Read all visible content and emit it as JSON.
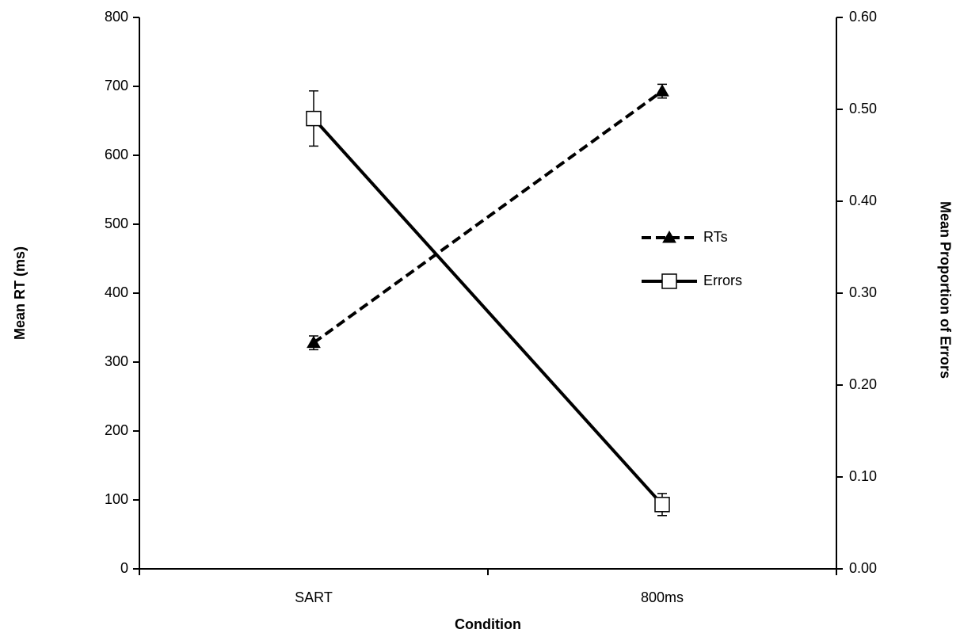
{
  "chart_data": {
    "type": "line",
    "categories": [
      "SART",
      "800ms"
    ],
    "x_label": "Condition",
    "y_label": "Mean RT (ms)",
    "y2_label": "Mean Proportion of Errors",
    "ylim": [
      0,
      800
    ],
    "yticks": [
      0,
      100,
      200,
      300,
      400,
      500,
      600,
      700,
      800
    ],
    "y2lim": [
      0,
      0.6
    ],
    "y2ticks": [
      {
        "value": 0,
        "label": "0.00"
      },
      {
        "value": 0.1,
        "label": "0.10"
      },
      {
        "value": 0.2,
        "label": "0.20"
      },
      {
        "value": 0.3,
        "label": "0.30"
      },
      {
        "value": 0.4,
        "label": "0.40"
      },
      {
        "value": 0.5,
        "label": "0.50"
      },
      {
        "value": 0.6,
        "label": "0.60"
      }
    ],
    "series": [
      {
        "name": "RTs",
        "color": "#000000",
        "values": [
          328,
          693
        ],
        "errors": [
          10,
          10
        ],
        "dash": true,
        "marker": "triangle"
      },
      {
        "name": "Errors",
        "color": "#000000",
        "values": [
          0.49,
          0.07
        ],
        "errors": [
          0.03,
          0.012
        ],
        "axis": "y2",
        "dash": false,
        "marker": "square"
      }
    ],
    "legend": "right"
  }
}
